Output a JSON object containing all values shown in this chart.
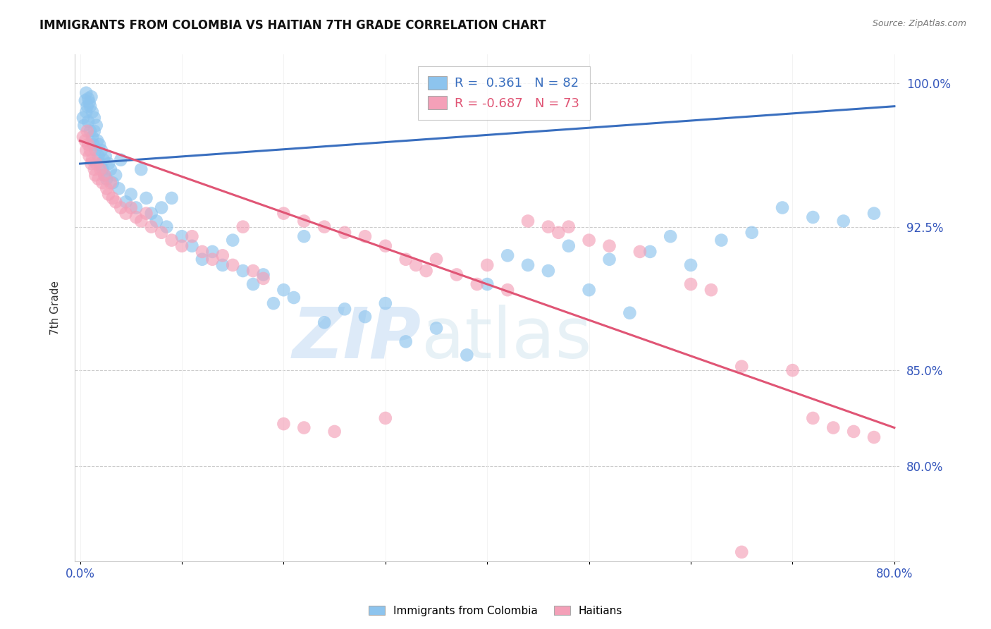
{
  "title": "IMMIGRANTS FROM COLOMBIA VS HAITIAN 7TH GRADE CORRELATION CHART",
  "source": "Source: ZipAtlas.com",
  "ylabel": "7th Grade",
  "xlim": [
    0.0,
    80.0
  ],
  "ylim": [
    75.0,
    101.5
  ],
  "x_ticks": [
    0.0,
    10.0,
    20.0,
    30.0,
    40.0,
    50.0,
    60.0,
    70.0,
    80.0
  ],
  "y_ticks": [
    80.0,
    85.0,
    92.5,
    100.0
  ],
  "colombia_R": 0.361,
  "colombia_N": 82,
  "haiti_R": -0.687,
  "haiti_N": 73,
  "colombia_color": "#8DC4EE",
  "haiti_color": "#F4A0B8",
  "colombia_line_color": "#3A6FBF",
  "haiti_line_color": "#E05575",
  "background_color": "#FFFFFF",
  "colombia_x": [
    0.3,
    0.4,
    0.5,
    0.6,
    0.6,
    0.7,
    0.8,
    0.8,
    0.9,
    1.0,
    1.0,
    1.1,
    1.2,
    1.2,
    1.3,
    1.4,
    1.4,
    1.5,
    1.6,
    1.7,
    1.8,
    1.9,
    2.0,
    2.1,
    2.2,
    2.3,
    2.4,
    2.5,
    2.6,
    2.8,
    3.0,
    3.2,
    3.5,
    3.8,
    4.0,
    4.5,
    5.0,
    5.5,
    6.0,
    6.5,
    7.0,
    7.5,
    8.0,
    8.5,
    9.0,
    10.0,
    11.0,
    12.0,
    13.0,
    14.0,
    15.0,
    16.0,
    17.0,
    18.0,
    19.0,
    20.0,
    21.0,
    22.0,
    24.0,
    26.0,
    28.0,
    30.0,
    32.0,
    35.0,
    38.0,
    40.0,
    42.0,
    44.0,
    46.0,
    48.0,
    50.0,
    52.0,
    54.0,
    56.0,
    58.0,
    60.0,
    63.0,
    66.0,
    69.0,
    72.0,
    75.0,
    78.0
  ],
  "colombia_y": [
    98.2,
    97.8,
    99.1,
    98.5,
    99.5,
    98.8,
    99.2,
    98.0,
    99.0,
    97.5,
    98.8,
    99.3,
    97.2,
    98.5,
    96.8,
    97.5,
    98.2,
    96.5,
    97.8,
    97.0,
    96.2,
    96.8,
    95.8,
    96.5,
    95.5,
    96.0,
    95.2,
    96.2,
    95.0,
    95.8,
    95.5,
    94.8,
    95.2,
    94.5,
    96.0,
    93.8,
    94.2,
    93.5,
    95.5,
    94.0,
    93.2,
    92.8,
    93.5,
    92.5,
    94.0,
    92.0,
    91.5,
    90.8,
    91.2,
    90.5,
    91.8,
    90.2,
    89.5,
    90.0,
    88.5,
    89.2,
    88.8,
    92.0,
    87.5,
    88.2,
    87.8,
    88.5,
    86.5,
    87.2,
    85.8,
    89.5,
    91.0,
    90.5,
    90.2,
    91.5,
    89.2,
    90.8,
    88.0,
    91.2,
    92.0,
    90.5,
    91.8,
    92.2,
    93.5,
    93.0,
    92.8,
    93.2
  ],
  "haiti_x": [
    0.3,
    0.5,
    0.6,
    0.7,
    0.8,
    0.9,
    1.0,
    1.1,
    1.2,
    1.4,
    1.5,
    1.6,
    1.8,
    2.0,
    2.2,
    2.4,
    2.6,
    2.8,
    3.0,
    3.2,
    3.5,
    4.0,
    4.5,
    5.0,
    5.5,
    6.0,
    6.5,
    7.0,
    8.0,
    9.0,
    10.0,
    11.0,
    12.0,
    13.0,
    14.0,
    15.0,
    16.0,
    17.0,
    18.0,
    20.0,
    22.0,
    24.0,
    26.0,
    28.0,
    30.0,
    32.0,
    33.0,
    34.0,
    35.0,
    37.0,
    39.0,
    40.0,
    42.0,
    44.0,
    46.0,
    47.0,
    48.0,
    50.0,
    52.0,
    55.0,
    60.0,
    62.0,
    65.0,
    70.0,
    72.0,
    74.0,
    76.0,
    78.0,
    30.0,
    20.0,
    22.0,
    25.0,
    65.0
  ],
  "haiti_y": [
    97.2,
    97.0,
    96.5,
    97.5,
    96.8,
    96.2,
    96.5,
    95.8,
    96.0,
    95.5,
    95.2,
    95.8,
    95.0,
    95.5,
    94.8,
    95.2,
    94.5,
    94.2,
    94.8,
    94.0,
    93.8,
    93.5,
    93.2,
    93.5,
    93.0,
    92.8,
    93.2,
    92.5,
    92.2,
    91.8,
    91.5,
    92.0,
    91.2,
    90.8,
    91.0,
    90.5,
    92.5,
    90.2,
    89.8,
    93.2,
    92.8,
    92.5,
    92.2,
    92.0,
    91.5,
    90.8,
    90.5,
    90.2,
    90.8,
    90.0,
    89.5,
    90.5,
    89.2,
    92.8,
    92.5,
    92.2,
    92.5,
    91.8,
    91.5,
    91.2,
    89.5,
    89.2,
    85.2,
    85.0,
    82.5,
    82.0,
    81.8,
    81.5,
    82.5,
    82.2,
    82.0,
    81.8,
    75.5
  ],
  "colombia_trend": [
    95.8,
    98.8
  ],
  "haiti_trend": [
    97.0,
    82.0
  ]
}
